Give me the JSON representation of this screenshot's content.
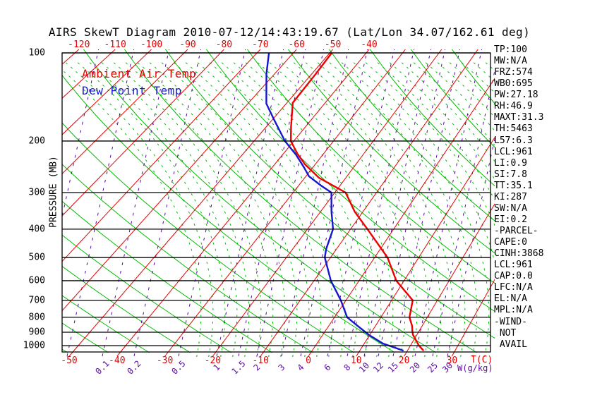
{
  "title": "AIRS SkewT Diagram 2010-07-12/14:43:19.67 (Lat/Lon 34.07/162.61 deg)",
  "legend": {
    "ambient_label": "Ambient Air Temp",
    "dew_label": "Dew Point Temp"
  },
  "axes": {
    "pressure_label": "PRESSURE (MB)",
    "pressure_ticks": [
      100,
      200,
      300,
      400,
      500,
      600,
      700,
      800,
      900,
      1000
    ],
    "top_temp_ticks": [
      -120,
      -110,
      -100,
      -90,
      -80,
      -70,
      -60,
      -50,
      -40
    ],
    "bottom_temp_ticks": [
      -50,
      -40,
      -30,
      -20,
      -10,
      0,
      10,
      20,
      30
    ],
    "temp_axis_label": "T(C)",
    "mixing_ratio_ticks": [
      0.1,
      0.2,
      0.5,
      1,
      1.5,
      2,
      3,
      4,
      6,
      8,
      10,
      12,
      15,
      20,
      25,
      30
    ],
    "mixing_ratio_label": "W(g/kg)"
  },
  "stats": [
    "TP:100",
    "MW:N/A",
    "FRZ:574",
    "WB0:695",
    "PW:27.18",
    "RH:46.9",
    "MAXT:31.3",
    "TH:5463",
    "L57:6.3",
    "LCL:961",
    "LI:0.9",
    "SI:7.8",
    "TT:35.1",
    "KI:287",
    "SW:N/A",
    "EI:0.2",
    "-PARCEL-",
    "CAPE:0",
    "CINH:3868",
    "LCL:961",
    "CAP:0.0",
    "LFC:N/A",
    "EL:N/A",
    "MPL:N/A",
    "-WIND-",
    " NOT",
    " AVAIL"
  ],
  "colors": {
    "isotherm_red": "#e60000",
    "adiabat_green": "#00bd00",
    "mixing_purple": "#5b0aa0",
    "temp_profile_red": "#ee0000",
    "dew_profile_blue": "#1616cf",
    "grid_black": "#000000",
    "background": "#ffffff"
  },
  "chart_data": {
    "type": "line",
    "subtype": "skewt-log-p",
    "title": "AIRS SkewT Diagram 2010-07-12/14:43:19.67 (Lat/Lon 34.07/162.61 deg)",
    "xlabel": "T(C)",
    "ylabel": "PRESSURE (MB)",
    "x_range_bottom_c": [
      -50,
      30
    ],
    "x_range_top_c": [
      -120,
      -40
    ],
    "pressure_range_mb": [
      100,
      1050
    ],
    "grid": "skew-t background: red isotherms, green solid dry adiabats, green dashed moist adiabats, purple dashed mixing-ratio lines",
    "legend_position": "top-left inside plot",
    "series": [
      {
        "name": "Ambient Air Temp",
        "color": "#ee0000",
        "points_p_mb_t_c": [
          [
            100,
            -50.3
          ],
          [
            118,
            -49.6
          ],
          [
            148,
            -49.0
          ],
          [
            179,
            -44.0
          ],
          [
            200,
            -41.0
          ],
          [
            221,
            -36.7
          ],
          [
            240,
            -32.7
          ],
          [
            267,
            -26.6
          ],
          [
            300,
            -17.4
          ],
          [
            349,
            -11.8
          ],
          [
            400,
            -5.9
          ],
          [
            500,
            3.2
          ],
          [
            600,
            8.6
          ],
          [
            700,
            15.0
          ],
          [
            800,
            16.6
          ],
          [
            856,
            18.3
          ],
          [
            895,
            19.1
          ],
          [
            920,
            19.7
          ],
          [
            1000,
            22.3
          ],
          [
            1040,
            23.9
          ]
        ]
      },
      {
        "name": "Dew Point Temp",
        "color": "#1616cf",
        "points_p_mb_t_c": [
          [
            100,
            -67.6
          ],
          [
            118,
            -62.9
          ],
          [
            149,
            -55.7
          ],
          [
            169,
            -50.0
          ],
          [
            200,
            -42.5
          ],
          [
            223,
            -36.8
          ],
          [
            246,
            -32.3
          ],
          [
            264,
            -29.3
          ],
          [
            284,
            -24.6
          ],
          [
            300,
            -20.8
          ],
          [
            349,
            -17.3
          ],
          [
            400,
            -13.9
          ],
          [
            468,
            -12.1
          ],
          [
            500,
            -11.0
          ],
          [
            600,
            -5.9
          ],
          [
            700,
            -0.7
          ],
          [
            800,
            3.2
          ],
          [
            860,
            6.9
          ],
          [
            920,
            10.4
          ],
          [
            984,
            14.5
          ],
          [
            1040,
            19.7
          ]
        ]
      }
    ]
  }
}
